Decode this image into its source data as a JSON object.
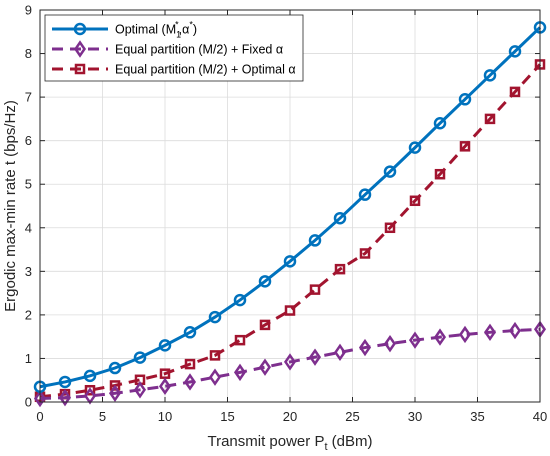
{
  "chart_data": {
    "type": "line",
    "xlabel": "Transmit power P",
    "xlabel_sub": "t",
    "xlabel_unit": " (dBm)",
    "ylabel": "Ergodic max-min rate t (bps/Hz)",
    "xlim": [
      0,
      40
    ],
    "ylim": [
      0,
      9
    ],
    "xticks": [
      0,
      5,
      10,
      15,
      20,
      25,
      30,
      35,
      40
    ],
    "yticks": [
      0,
      1,
      2,
      3,
      4,
      5,
      6,
      7,
      8,
      9
    ],
    "grid": true,
    "legend_position": "top-left",
    "series": [
      {
        "name": "Optimal (M",
        "name_sub": "1",
        "name_sup": "*",
        "name_tail": ",α",
        "name_tail_sup": "*",
        "name_end": ")",
        "color": "#0072BD",
        "marker": "circle",
        "dash": "solid",
        "x": [
          0,
          2,
          4,
          6,
          8,
          10,
          12,
          14,
          16,
          18,
          20,
          22,
          24,
          26,
          28,
          30,
          32,
          34,
          36,
          38,
          40
        ],
        "y": [
          0.35,
          0.46,
          0.6,
          0.78,
          1.02,
          1.3,
          1.6,
          1.95,
          2.34,
          2.77,
          3.23,
          3.71,
          4.22,
          4.76,
          5.29,
          5.84,
          6.4,
          6.95,
          7.5,
          8.05,
          8.6
        ]
      },
      {
        "name": "Equal partition (M/2) + Fixed α",
        "color": "#7E2F8E",
        "marker": "diamond",
        "dash": "dashed",
        "x": [
          0,
          2,
          4,
          6,
          8,
          10,
          12,
          14,
          16,
          18,
          20,
          22,
          24,
          26,
          28,
          30,
          32,
          34,
          36,
          38,
          40
        ],
        "y": [
          0.08,
          0.1,
          0.14,
          0.2,
          0.28,
          0.36,
          0.46,
          0.57,
          0.68,
          0.8,
          0.92,
          1.03,
          1.14,
          1.25,
          1.34,
          1.42,
          1.49,
          1.55,
          1.6,
          1.64,
          1.67
        ]
      },
      {
        "name": "Equal partition (M/2) + Optimal α",
        "color": "#A2142F",
        "marker": "square",
        "dash": "dashed",
        "x": [
          0,
          2,
          4,
          6,
          8,
          10,
          12,
          14,
          16,
          18,
          20,
          22,
          24,
          26,
          28,
          30,
          32,
          34,
          36,
          38,
          40
        ],
        "y": [
          0.12,
          0.18,
          0.27,
          0.38,
          0.51,
          0.65,
          0.87,
          1.07,
          1.42,
          1.77,
          2.1,
          2.58,
          3.05,
          3.41,
          4.0,
          4.62,
          5.23,
          5.87,
          6.5,
          7.12,
          7.75
        ]
      }
    ]
  }
}
